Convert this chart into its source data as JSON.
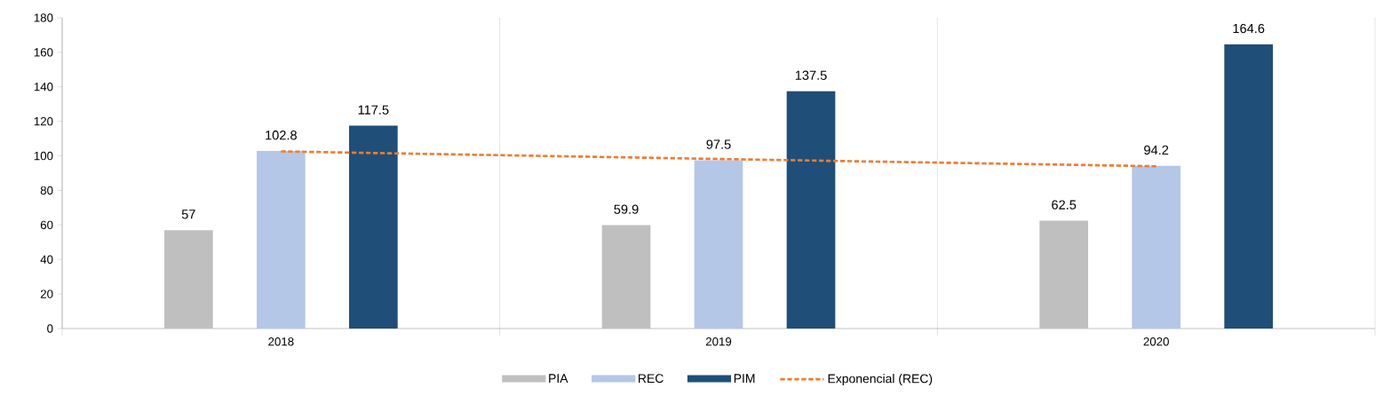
{
  "chart_data": {
    "type": "bar",
    "categories": [
      "2018",
      "2019",
      "2020"
    ],
    "series": [
      {
        "name": "PIA",
        "color": "#bfbfbf",
        "values": [
          57,
          59.9,
          62.5
        ],
        "value_labels": [
          "57",
          "59.9",
          "62.5"
        ]
      },
      {
        "name": "REC",
        "color": "#b4c7e7",
        "values": [
          102.8,
          97.5,
          94.2
        ],
        "value_labels": [
          "102.8",
          "97.5",
          "94.2"
        ]
      },
      {
        "name": "PIM",
        "color": "#1f4e79",
        "values": [
          117.5,
          137.5,
          164.6
        ],
        "value_labels": [
          "117.5",
          "137.5",
          "164.6"
        ]
      },
      {
        "name": "Exponencial (REC)",
        "type": "line",
        "color": "#ed7d31",
        "line_style": "dashed",
        "marker": "none",
        "values": [
          102.6,
          98.2,
          94.0
        ]
      }
    ],
    "ylim": [
      0,
      180
    ],
    "yticks": [
      0,
      20,
      40,
      60,
      80,
      100,
      120,
      140,
      160,
      180
    ],
    "grid": "x",
    "legend": "bottom"
  }
}
